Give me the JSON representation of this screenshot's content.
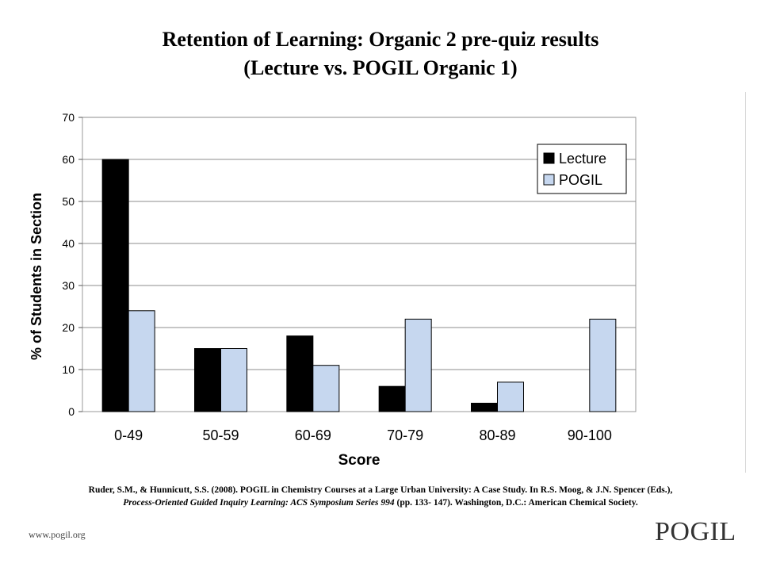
{
  "slide": {
    "title_line1": "Retention of Learning: Organic 2 pre-quiz results",
    "title_line2": "(Lecture vs. POGIL Organic 1)",
    "citation_line1": "Ruder, S.M., & Hunnicutt, S.S. (2008).  POGIL in Chemistry Courses at a Large Urban University:  A Case Study. In R.S. Moog, & J.N. Spencer (Eds.),",
    "citation_line2_italic": "Process-Oriented Guided Inquiry Learning:  ACS Symposium Series 994",
    "citation_line2_rest": " (pp. 133- 147).  Washington, D.C.:  American Chemical Society.",
    "footer_url": "www.pogil.org",
    "logo_text": "POGIL"
  },
  "chart_data": {
    "type": "bar",
    "title": "",
    "xlabel": "Score",
    "ylabel": "% of Students in Section",
    "categories": [
      "0-49",
      "50-59",
      "60-69",
      "70-79",
      "80-89",
      "90-100"
    ],
    "series": [
      {
        "name": "Lecture",
        "values": [
          60,
          15,
          18,
          6,
          2,
          0
        ],
        "color": "#000000"
      },
      {
        "name": "POGIL",
        "values": [
          24,
          15,
          11,
          22,
          7,
          22
        ],
        "color": "#c6d7ef"
      }
    ],
    "ylim": [
      0,
      70
    ],
    "yticks": [
      0,
      10,
      20,
      30,
      40,
      50,
      60,
      70
    ],
    "grid": true,
    "legend_position": "top-right"
  }
}
